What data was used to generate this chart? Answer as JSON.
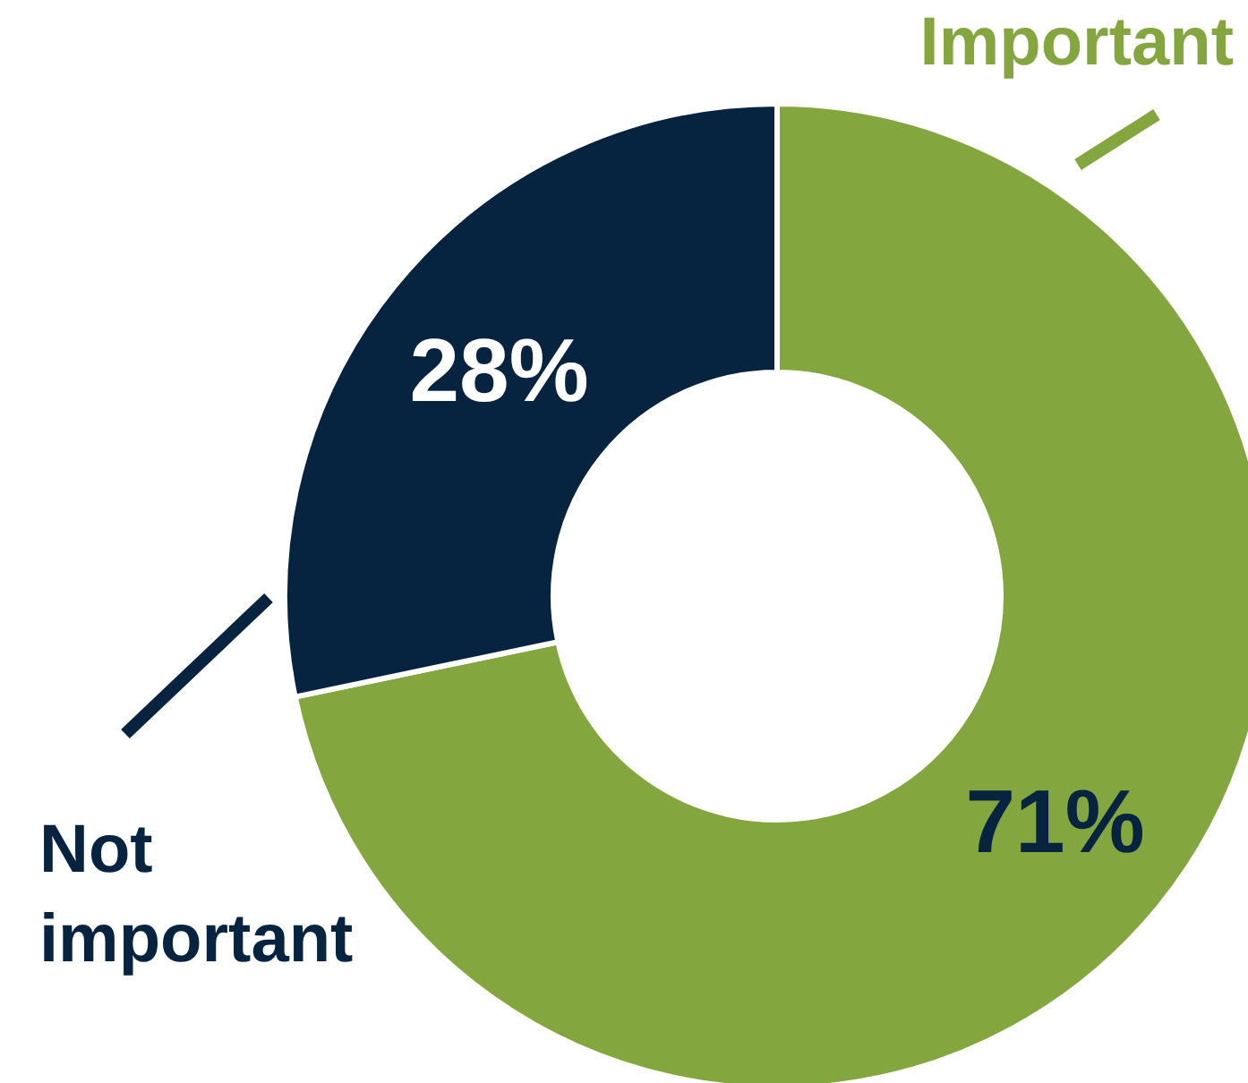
{
  "chart_data": {
    "type": "donut",
    "categories": [
      "Important",
      "Not important"
    ],
    "values": [
      71,
      28
    ],
    "colors": [
      "#84a63e",
      "#062340"
    ],
    "value_labels": [
      "71%",
      "28%"
    ],
    "legend": false
  }
}
